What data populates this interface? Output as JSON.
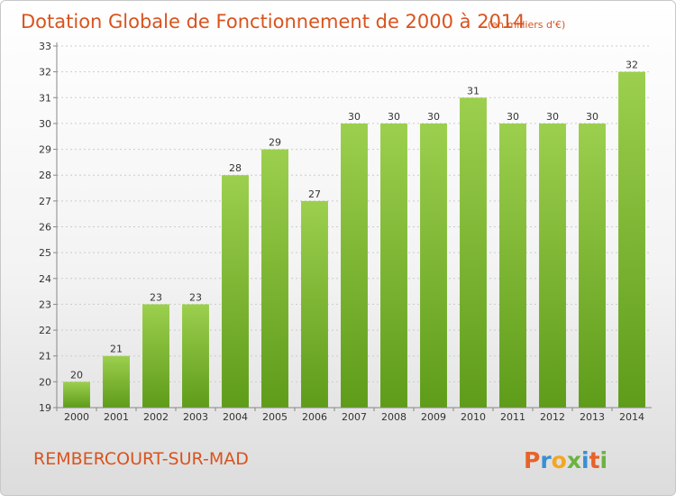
{
  "title": {
    "main": "Dotation Globale de Fonctionnement de 2000 à 2014",
    "unit": "(en milliers d'€)"
  },
  "commune": "REMBERCOURT-SUR-MAD",
  "logo": {
    "letters": [
      "P",
      "r",
      "o",
      "x",
      "i",
      "t",
      "i"
    ],
    "colors": [
      "#e8622a",
      "#3a8fd4",
      "#f4a623",
      "#6cb33f",
      "#3a8fd4",
      "#e8622a",
      "#6cb33f"
    ]
  },
  "colors": {
    "bar_top": "#9ccf4e",
    "bar_bottom": "#5e9c19",
    "grid": "#cccccc",
    "axis": "#888888"
  },
  "chart_data": {
    "type": "bar",
    "categories": [
      "2000",
      "2001",
      "2002",
      "2003",
      "2004",
      "2005",
      "2006",
      "2007",
      "2008",
      "2009",
      "2010",
      "2011",
      "2012",
      "2013",
      "2014"
    ],
    "values": [
      20,
      21,
      23,
      23,
      28,
      29,
      27,
      30,
      30,
      30,
      31,
      30,
      30,
      30,
      32
    ],
    "title": "Dotation Globale de Fonctionnement de 2000 à 2014",
    "ylim": [
      19,
      33
    ],
    "yticks": [
      19,
      20,
      21,
      22,
      23,
      24,
      25,
      26,
      27,
      28,
      29,
      30,
      31,
      32,
      33
    ],
    "grid": true,
    "data_labels": true
  }
}
